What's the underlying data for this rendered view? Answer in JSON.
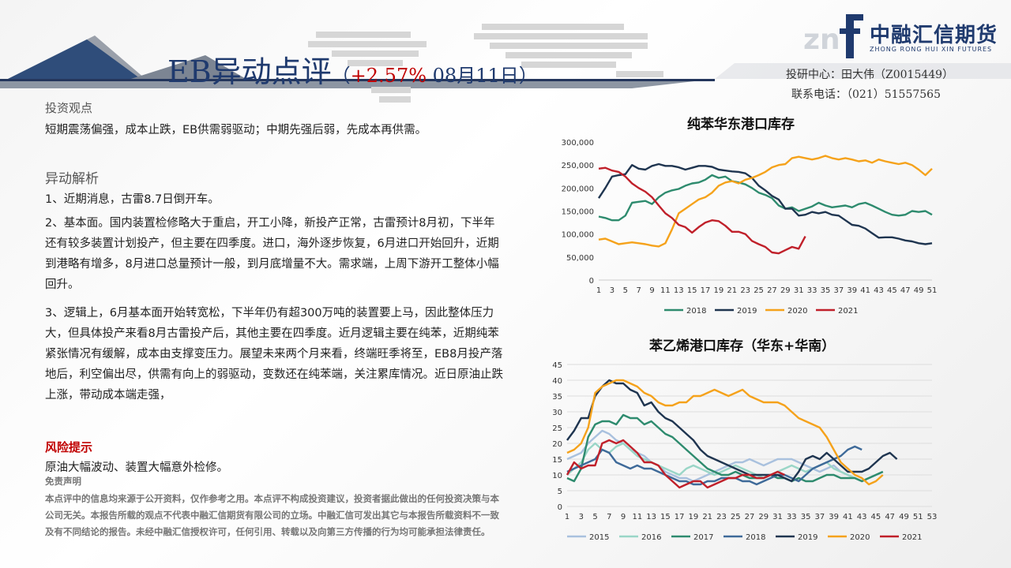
{
  "header": {
    "title_main": "EB异动点评",
    "title_open": "（",
    "change": "+2.57%",
    "date": " 08月11日）"
  },
  "logo": {
    "name": "中融汇信期货",
    "sub": "ZHONG RONG HUI XIN FUTURES"
  },
  "contact": {
    "line1": "投研中心：田大伟（Z0015449）",
    "line2": "联系电话：（021）51557565"
  },
  "invest": {
    "heading": "投资观点",
    "text": "短期震荡偏强，成本止跌，EB供需弱驱动；中期先强后弱，先成本再供需。"
  },
  "analysis": {
    "heading": "异动解析",
    "p1": "1、近期消息，古雷8.7日倒开车。",
    "p2": "2、基本面。国内装置检修略大于重启，开工小降，新投产正常，古雷预计8月初，下半年还有较多装置计划投产，但主要在四季度。进口，海外逐步恢复，6月进口开始回升，近期到港略有增多，8月进口总量预计一般，到月底增量不大。需求端，上周下游开工整体小幅回升。",
    "p3": "3、逻辑上，6月基本面开始转宽松，下半年仍有超300万吨的装置要上马，因此整体压力大，但具体投产来看8月古雷投产后，其他主要在四季度。近月逻辑主要在纯苯，近期纯苯紧张情况有缓解，成本由支撑变压力。展望未来两个月来看，终端旺季将至，EB8月投产落地后，利空偏出尽，供需有向上的弱驱动，变数还在纯苯端，关注累库情况。近日原油止跌上涨，带动成本端走强，"
  },
  "risk": {
    "heading": "风险提示",
    "text": "原油大幅波动、装置大幅意外检修。"
  },
  "disclaimer": {
    "heading": "免责声明",
    "text": "本点评中的信息均来源于公开资料，仅作参考之用。本点评不构成投资建议，投资者据此做出的任何投资决策与本公司无关。本报告所载的观点不代表中融汇信期货有限公司的立场。中融汇信可发出其它与本报告所载资料不一致及有不同结论的报告。未经中融汇信授权许可，任何引用、转载以及向第三方传播的行为均可能承担法律责任。"
  },
  "chart_data": [
    {
      "type": "line",
      "title": "纯苯华东港口库存",
      "x_ticks": [
        1,
        3,
        5,
        7,
        9,
        11,
        13,
        15,
        17,
        19,
        21,
        23,
        25,
        27,
        29,
        31,
        33,
        35,
        37,
        39,
        41,
        43,
        45,
        47,
        49,
        51
      ],
      "ylim": [
        0,
        300000
      ],
      "y_ticks": [
        "0",
        "50,000",
        "100,000",
        "150,000",
        "200,000",
        "250,000",
        "300,000"
      ],
      "legend_position": "bottom",
      "grid": false,
      "series": [
        {
          "name": "2018",
          "color": "#2e8b6e",
          "values": [
            138000,
            135000,
            130000,
            130000,
            140000,
            168000,
            170000,
            172000,
            165000,
            180000,
            190000,
            195000,
            198000,
            205000,
            210000,
            212000,
            218000,
            228000,
            222000,
            225000,
            215000,
            212000,
            208000,
            200000,
            190000,
            185000,
            178000,
            162000,
            155000,
            158000,
            150000,
            155000,
            160000,
            168000,
            162000,
            158000,
            160000,
            162000,
            158000,
            165000,
            168000,
            162000,
            155000,
            148000,
            142000,
            140000,
            142000,
            150000,
            148000,
            150000,
            142000
          ]
        },
        {
          "name": "2019",
          "color": "#1f3550",
          "values": [
            178000,
            200000,
            225000,
            228000,
            230000,
            250000,
            242000,
            240000,
            248000,
            252000,
            248000,
            248000,
            245000,
            240000,
            244000,
            248000,
            248000,
            246000,
            240000,
            238000,
            236000,
            235000,
            232000,
            222000,
            205000,
            195000,
            183000,
            175000,
            155000,
            155000,
            140000,
            142000,
            148000,
            145000,
            148000,
            142000,
            140000,
            130000,
            120000,
            118000,
            112000,
            102000,
            92000,
            93000,
            93000,
            90000,
            86000,
            84000,
            80000,
            78000,
            80000
          ]
        },
        {
          "name": "2020",
          "color": "#f5a21b",
          "values": [
            88000,
            90000,
            84000,
            78000,
            80000,
            82000,
            80000,
            78000,
            75000,
            73000,
            80000,
            110000,
            145000,
            155000,
            165000,
            175000,
            180000,
            190000,
            205000,
            212000,
            215000,
            210000,
            218000,
            222000,
            228000,
            235000,
            245000,
            250000,
            252000,
            265000,
            268000,
            265000,
            262000,
            265000,
            270000,
            265000,
            262000,
            265000,
            262000,
            258000,
            260000,
            255000,
            262000,
            258000,
            255000,
            252000,
            255000,
            250000,
            240000,
            228000,
            242000
          ]
        },
        {
          "name": "2021",
          "color": "#c0202a",
          "values": [
            242000,
            244000,
            238000,
            235000,
            225000,
            210000,
            200000,
            192000,
            180000,
            162000,
            145000,
            135000,
            120000,
            115000,
            103000,
            115000,
            125000,
            130000,
            128000,
            118000,
            105000,
            105000,
            100000,
            85000,
            78000,
            72000,
            60000,
            58000,
            65000,
            72000,
            68000,
            95000
          ]
        }
      ]
    },
    {
      "type": "line",
      "title": "苯乙烯港口库存（华东+华南）",
      "x_ticks": [
        1,
        3,
        5,
        7,
        9,
        11,
        13,
        15,
        17,
        19,
        21,
        23,
        25,
        27,
        29,
        31,
        33,
        35,
        37,
        39,
        41,
        43,
        45,
        47,
        49,
        51,
        53
      ],
      "ylim": [
        0,
        45
      ],
      "y_ticks": [
        "0",
        "5",
        "10",
        "15",
        "20",
        "25",
        "30",
        "35",
        "40",
        "45"
      ],
      "legend_position": "bottom",
      "grid": true,
      "series": [
        {
          "name": "2015",
          "color": "#a9c1de",
          "values": [
            15,
            16,
            17,
            20,
            22,
            24,
            23,
            21,
            20,
            18,
            17,
            16,
            14,
            13,
            11,
            10,
            9,
            9,
            8,
            9,
            10,
            11,
            12,
            13,
            14,
            14,
            15,
            14,
            13,
            14,
            15,
            15,
            15,
            14,
            13,
            12,
            11,
            12,
            13,
            11,
            10,
            9,
            8,
            9,
            10,
            11
          ]
        },
        {
          "name": "2016",
          "color": "#9ad6c7",
          "values": [
            10,
            12,
            14,
            18,
            20,
            18,
            17,
            19,
            20,
            18,
            16,
            15,
            14,
            13,
            12,
            11,
            10,
            12,
            13,
            12,
            11,
            10,
            11,
            12,
            13,
            12,
            11,
            10,
            9,
            10,
            11,
            12,
            13,
            12,
            11,
            12,
            13,
            14,
            12,
            11,
            10,
            9,
            8,
            9,
            10,
            11
          ]
        },
        {
          "name": "2017",
          "color": "#2e8b6e",
          "values": [
            9,
            8,
            12,
            22,
            26,
            27,
            27,
            26,
            29,
            28,
            28,
            26,
            27,
            25,
            23,
            22,
            20,
            18,
            16,
            14,
            12,
            11,
            10,
            10,
            11,
            10,
            9,
            9,
            9,
            10,
            9,
            9,
            8,
            9,
            8,
            8,
            9,
            10,
            10,
            9,
            9,
            9,
            8,
            9,
            10,
            11
          ]
        },
        {
          "name": "2018",
          "color": "#3e6a99",
          "values": [
            11,
            12,
            13,
            14,
            15,
            18,
            17,
            14,
            13,
            12,
            13,
            12,
            12,
            11,
            10,
            9,
            8,
            8,
            7,
            7,
            8,
            8,
            9,
            9,
            9,
            8,
            8,
            7,
            8,
            9,
            10,
            10,
            9,
            8,
            10,
            12,
            13,
            14,
            15,
            16,
            18,
            19,
            18
          ]
        },
        {
          "name": "2019",
          "color": "#1f3550",
          "values": [
            21,
            24,
            28,
            28,
            35,
            38,
            40,
            39,
            39,
            37,
            36,
            32,
            33,
            30,
            28,
            27,
            25,
            23,
            21,
            18,
            16,
            15,
            14,
            13,
            12,
            11,
            10,
            10,
            10,
            10,
            10,
            9,
            8,
            11,
            15,
            16,
            15,
            17,
            15,
            13,
            11,
            11,
            11,
            12,
            14,
            16,
            17,
            15
          ]
        },
        {
          "name": "2020",
          "color": "#f5a21b",
          "values": [
            17,
            18,
            20,
            25,
            36,
            38,
            39,
            40,
            40,
            39,
            38,
            36,
            35,
            33,
            32,
            32,
            33,
            33,
            35,
            35,
            36,
            37,
            36,
            35,
            36,
            37,
            35,
            34,
            33,
            33,
            33,
            32,
            30,
            28,
            27,
            26,
            25,
            22,
            18,
            14,
            12,
            10,
            9,
            7,
            8,
            10
          ]
        },
        {
          "name": "2021",
          "color": "#c0202a",
          "values": [
            10,
            14,
            12,
            13,
            13,
            20,
            21,
            20,
            21,
            19,
            17,
            14,
            14,
            13,
            10,
            8,
            6,
            7,
            8,
            8,
            6,
            7,
            8,
            9,
            9,
            10,
            10,
            9,
            9,
            10,
            11,
            10
          ]
        }
      ]
    }
  ]
}
